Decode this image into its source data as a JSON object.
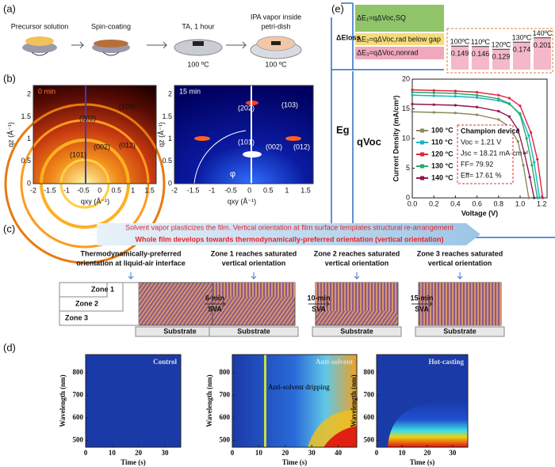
{
  "figure": {
    "a": {
      "label": "(a)",
      "steps": [
        "Precursor solution",
        "Spin-coating",
        "TA, 1 hour",
        "IPA vapor inside"
      ],
      "step_extra": "petri-dish",
      "temps": [
        "100 ºC",
        "100 ºC"
      ]
    },
    "b": {
      "label": "(b)",
      "xlabel": "qxy (Å⁻¹)",
      "ylabel": "qz (Å⁻¹)",
      "xticks": [
        -2,
        -1.5,
        -1,
        -0.5,
        0,
        0.5,
        1,
        1.5
      ],
      "yticks": [
        0,
        0.5,
        1,
        1.5,
        2
      ],
      "panels": [
        {
          "time": "0 min",
          "peaks": [
            "(202)",
            "(103)",
            "(002)",
            "(012)",
            "(101)"
          ]
        },
        {
          "time": "15 min",
          "peaks": [
            "(202)",
            "(103)",
            "(101)",
            "(002)",
            "(012)"
          ],
          "angle": "φ"
        }
      ]
    },
    "c": {
      "label": "(c)",
      "arrow_text": [
        "Solvent vapor plasticizes the film. Vertical orientation at film surface templates structural re-arrangement",
        "Whole film develops towards thermodynamically-preferred orientation (vertical orientation)"
      ],
      "stages": [
        [
          "Thermodynamically-preferred",
          "orientation at liquid-air interface"
        ],
        [
          "Zone 1 reaches saturated",
          "vertical orientation"
        ],
        [
          "Zone 2 reaches saturated",
          "vertical orientation"
        ],
        [
          "Zone 3 reaches saturated",
          "vertical orientation"
        ]
      ],
      "zones": [
        "Zone 1",
        "Zone 2",
        "Zone 3"
      ],
      "steps": [
        [
          "6-min",
          "SVA"
        ],
        [
          "10-min",
          "SVA"
        ],
        [
          "15-min",
          "SVA"
        ]
      ],
      "substrate": "Substrate"
    },
    "d": {
      "label": "(d)",
      "ylabel": "Wavelength (nm)",
      "xlabel": "Time (s)",
      "yticks": [
        500,
        600,
        700,
        800
      ],
      "panels": [
        {
          "title": "Control",
          "xticks": [
            0,
            10,
            20,
            30
          ]
        },
        {
          "title": "Anti-solvent",
          "xticks": [
            0,
            10,
            20,
            30,
            40
          ],
          "note": "Anti-solvent dripping"
        },
        {
          "title": "Hot-casting",
          "xticks": [
            0,
            10,
            20,
            30
          ]
        }
      ]
    },
    "e": {
      "label": "(e)",
      "dE1": "ΔE₁=qΔVoc,SQ",
      "dE2": "ΔE₂=qΔVoc,rad below gap",
      "dE3": "ΔE₃=qΔVoc,nonrad",
      "dEloss": "ΔEloss",
      "Eg": "Eg",
      "qVoc": "qVoc",
      "losses": [
        {
          "temp": "100ºC",
          "value": 0.149
        },
        {
          "temp": "110ºC",
          "value": 0.146
        },
        {
          "temp": "120ºC",
          "value": 0.129
        },
        {
          "temp": "130ºC",
          "value": 0.174
        },
        {
          "temp": "140ºC",
          "value": 0.201
        }
      ]
    }
  },
  "chart_data": {
    "type": "line",
    "xlabel": "Voltage (V)",
    "ylabel": "Current Density (mA/cm²)",
    "xlim": [
      0,
      1.25
    ],
    "ylim": [
      0,
      20
    ],
    "xticks": [
      {
        "value": 0,
        "label": "0.0"
      },
      {
        "value": 0.2,
        "label": "0.2"
      },
      {
        "value": 0.4,
        "label": "0.4"
      },
      {
        "value": 0.6,
        "label": "0.6"
      },
      {
        "value": 0.8,
        "label": "0.8"
      },
      {
        "value": 1,
        "label": "1.0"
      },
      {
        "value": 1.2,
        "label": "1.2"
      }
    ],
    "yticks": [
      0,
      5,
      10,
      15,
      20
    ],
    "annotation": [
      "Champion device",
      "Voc = 1.21 V",
      "Jsc = 18.21 mA·cm⁻²",
      "FF= 79.92",
      "Eff= 17.61 %"
    ],
    "series": [
      {
        "name": "100 °C",
        "color": "#8d8a5c",
        "x": [
          0,
          0.2,
          0.4,
          0.6,
          0.8,
          0.9,
          0.98,
          1.03,
          1.08
        ],
        "values": [
          14.5,
          14.4,
          14.3,
          14.0,
          13.2,
          12.0,
          9.5,
          5.5,
          0
        ]
      },
      {
        "name": "110 °C",
        "color": "#19b3c2",
        "x": [
          0,
          0.2,
          0.4,
          0.6,
          0.8,
          0.9,
          1.0,
          1.08,
          1.13,
          1.18
        ],
        "values": [
          17.3,
          17.2,
          17.1,
          16.9,
          16.4,
          15.8,
          14.2,
          10.5,
          6,
          0
        ]
      },
      {
        "name": "120 °C",
        "color": "#e2253c",
        "x": [
          0,
          0.2,
          0.4,
          0.6,
          0.8,
          0.9,
          1.0,
          1.1,
          1.16,
          1.21
        ],
        "values": [
          18.2,
          18.1,
          18.0,
          17.8,
          17.3,
          16.8,
          15.5,
          11.0,
          6.5,
          0
        ]
      },
      {
        "name": "130 °C",
        "color": "#2aa86a",
        "x": [
          0,
          0.2,
          0.4,
          0.6,
          0.8,
          0.9,
          1.0,
          1.06,
          1.11,
          1.16
        ],
        "values": [
          17.8,
          17.7,
          17.6,
          17.3,
          16.7,
          15.9,
          14.0,
          10.0,
          5.5,
          0
        ]
      },
      {
        "name": "140 °C",
        "color": "#8e1650",
        "x": [
          0,
          0.2,
          0.4,
          0.6,
          0.8,
          0.9,
          0.98,
          1.04,
          1.09,
          1.13
        ],
        "values": [
          15.8,
          15.7,
          15.6,
          15.3,
          14.6,
          13.7,
          11.5,
          7.5,
          3.5,
          0
        ]
      }
    ]
  }
}
